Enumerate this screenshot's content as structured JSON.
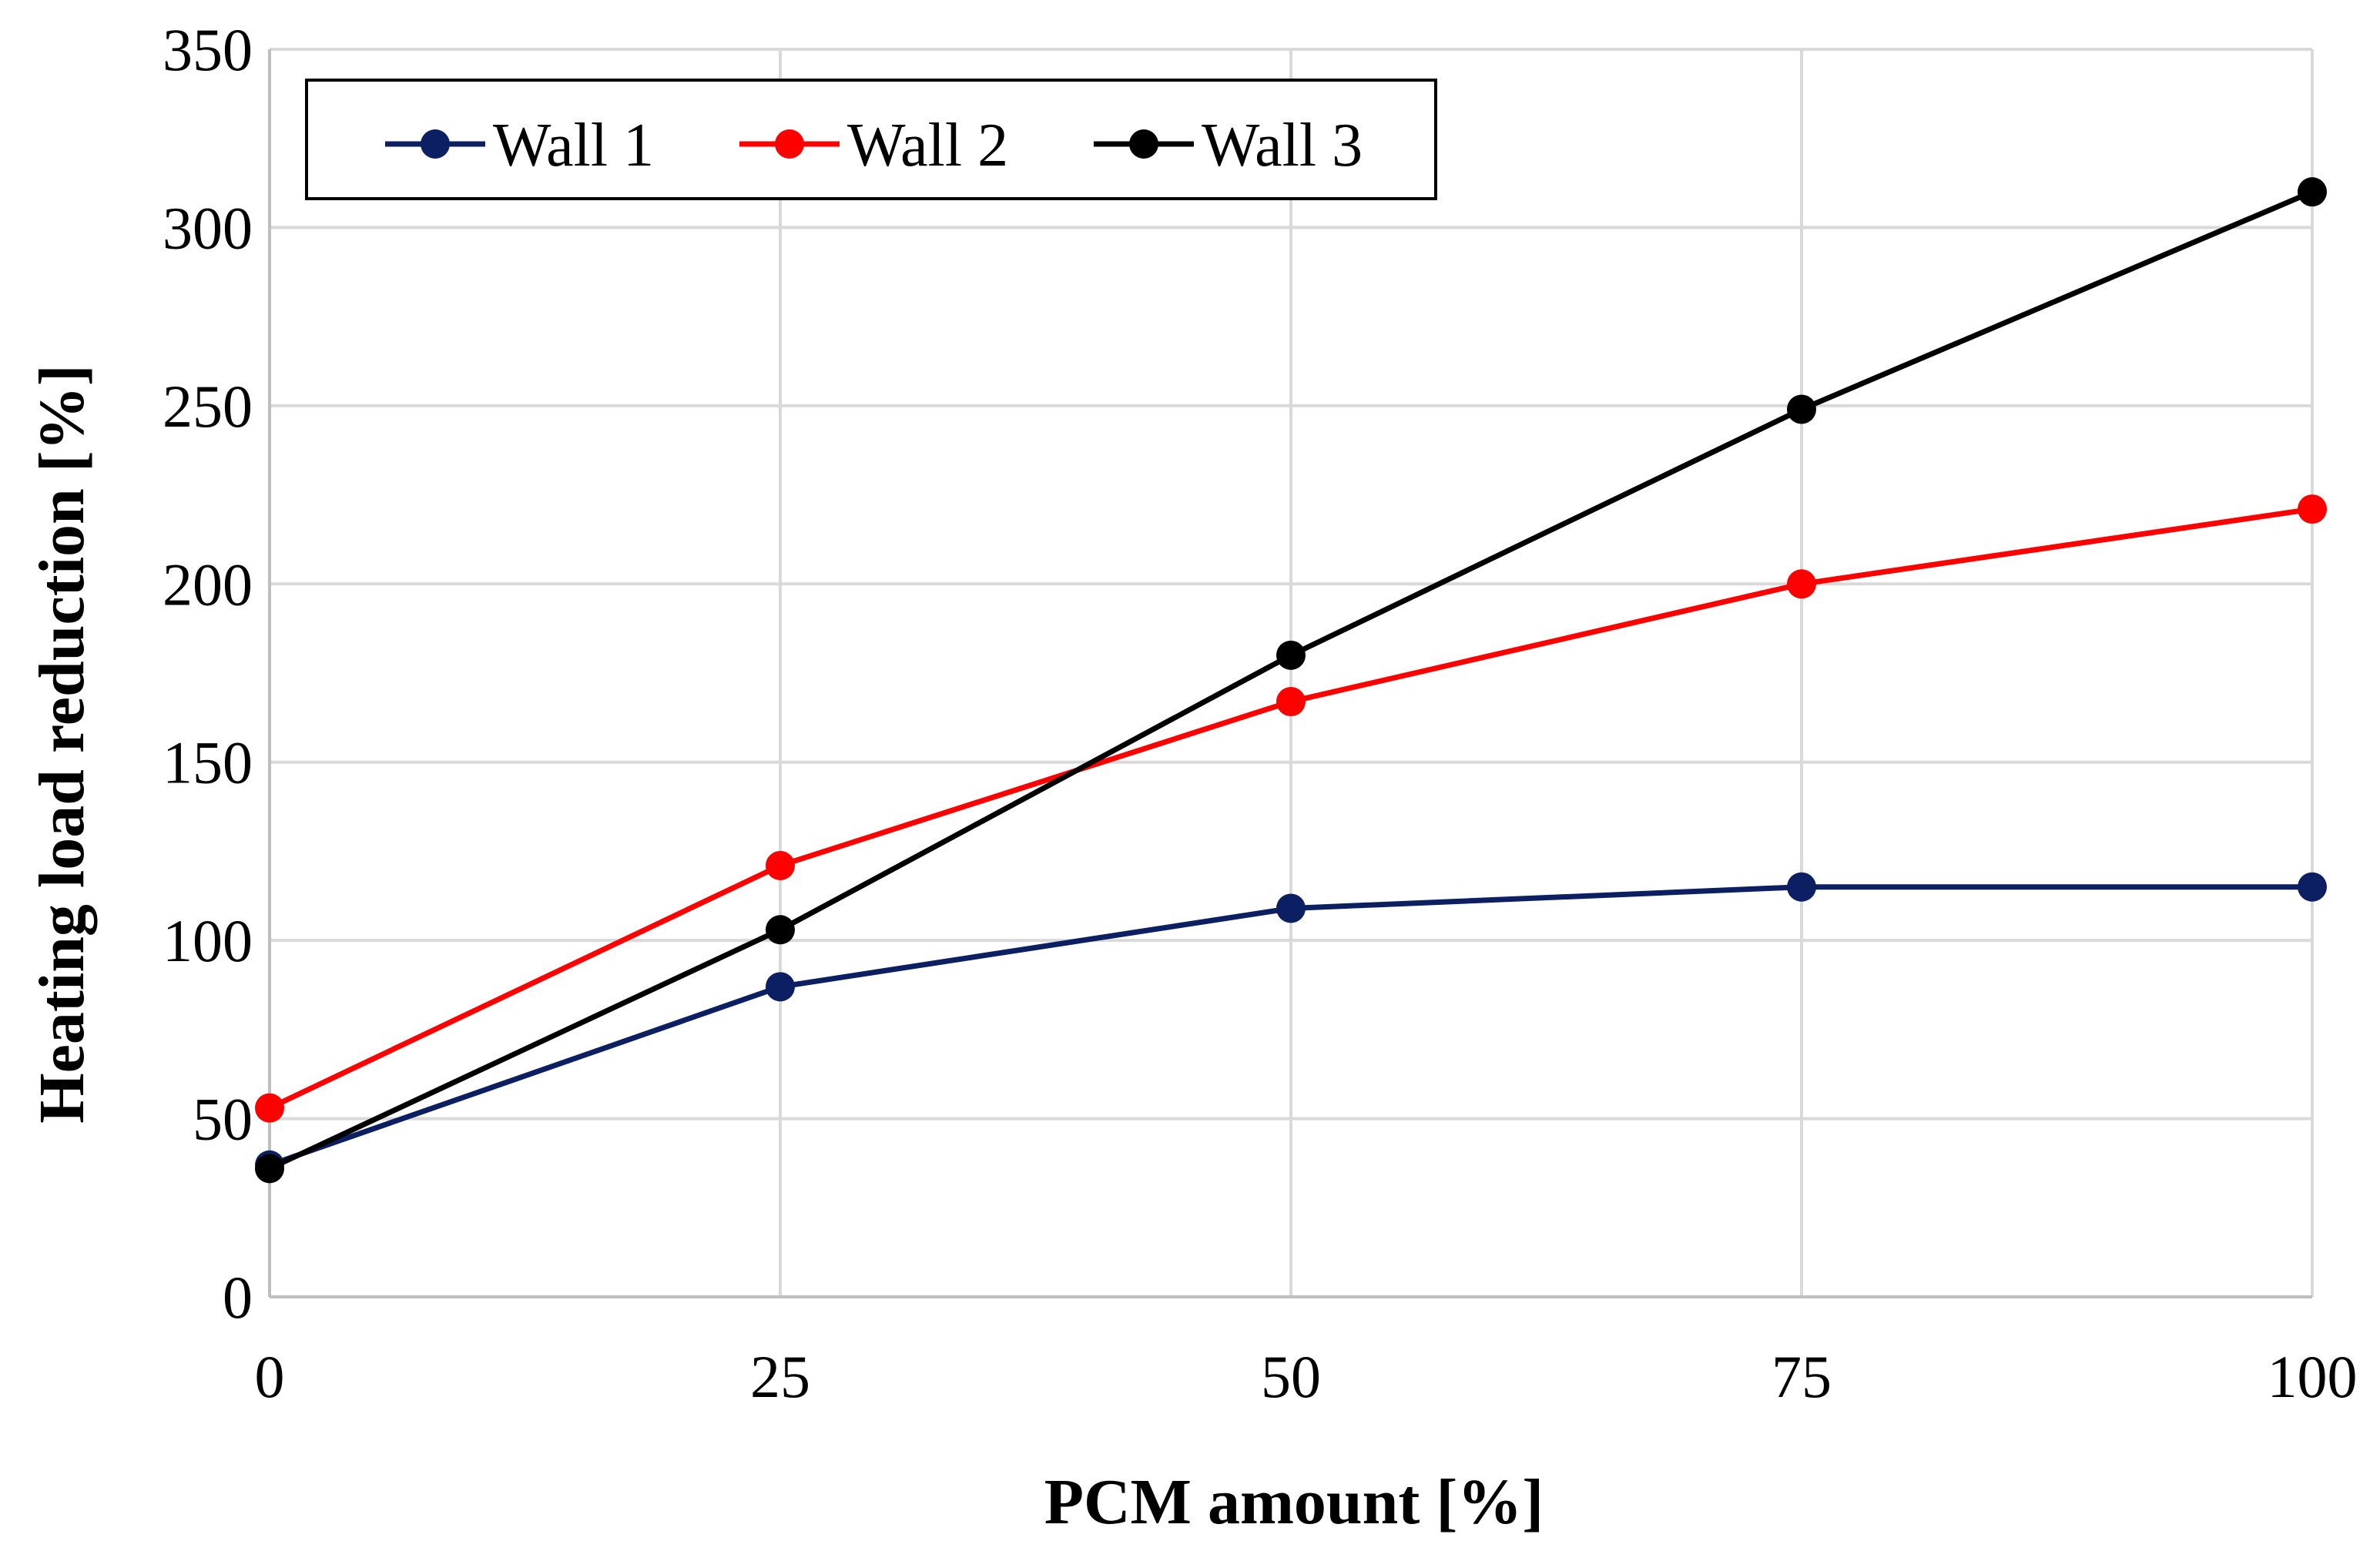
{
  "chart_data": {
    "type": "line",
    "title": "",
    "xlabel": "PCM amount [%]",
    "ylabel": "Heating load reduction [%]",
    "x": [
      0,
      25,
      50,
      75,
      100
    ],
    "xticks": [
      "0",
      "25",
      "50",
      "75",
      "100"
    ],
    "yticks": [
      "0",
      "50",
      "100",
      "150",
      "200",
      "250",
      "300",
      "350"
    ],
    "xlim": [
      0,
      100
    ],
    "ylim": [
      0,
      350
    ],
    "grid": true,
    "legend_position": "top-left",
    "series": [
      {
        "name": "Wall 1",
        "color": "#0d1f63",
        "values": [
          37,
          87,
          109,
          115,
          115
        ]
      },
      {
        "name": "Wall 2",
        "color": "#ff0000",
        "values": [
          53,
          121,
          167,
          200,
          221
        ]
      },
      {
        "name": "Wall 3",
        "color": "#000000",
        "values": [
          36,
          103,
          180,
          249,
          310
        ]
      }
    ]
  }
}
